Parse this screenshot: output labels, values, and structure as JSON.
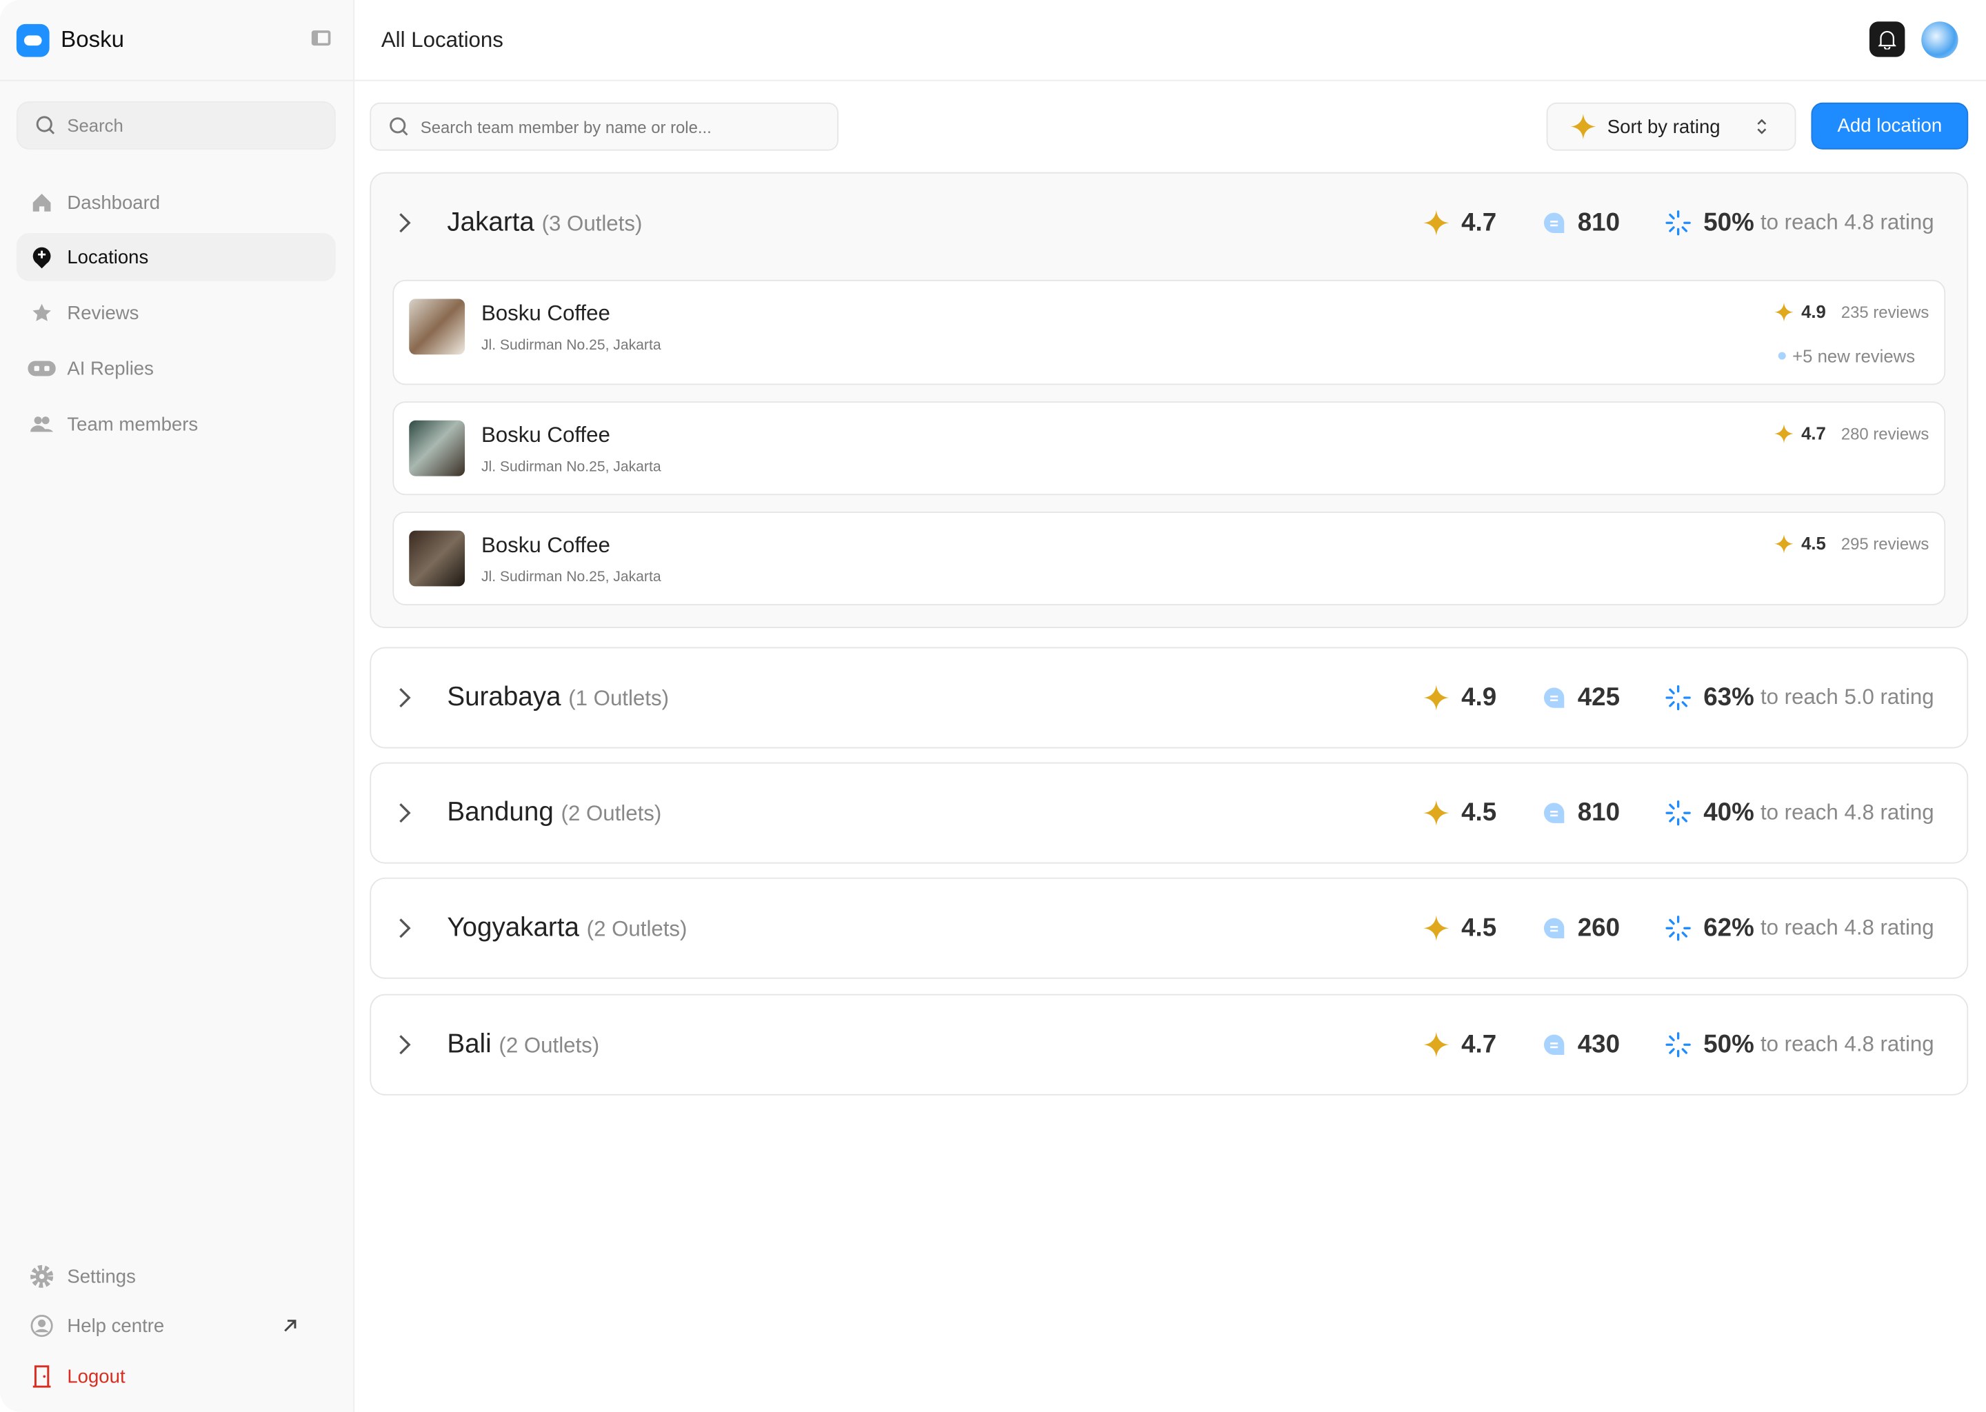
{
  "app": {
    "name": "Bosku"
  },
  "sidebar": {
    "search_placeholder": "Search",
    "items": [
      {
        "label": "Dashboard"
      },
      {
        "label": "Locations",
        "active": true
      },
      {
        "label": "Reviews"
      },
      {
        "label": "AI Replies"
      },
      {
        "label": "Team members"
      }
    ],
    "footer": [
      {
        "label": "Settings"
      },
      {
        "label": "Help centre"
      },
      {
        "label": "Logout"
      }
    ]
  },
  "header": {
    "title": "All Locations"
  },
  "toolbar": {
    "search_placeholder": "Search team member by name or role...",
    "sort_label": "Sort by rating",
    "add_label": "Add location"
  },
  "colors": {
    "accent": "#1e8bff",
    "star": "#e0a81c",
    "comment": "#a8d3ff",
    "logout": "#d92d20"
  },
  "groups": [
    {
      "city": "Jakarta",
      "count": "(3 Outlets)",
      "rating": "4.7",
      "reviews": "810",
      "progress": "50%",
      "goal": "to reach 4.8 rating",
      "expanded": true,
      "outlets": [
        {
          "name": "Bosku Coffee",
          "address": "Jl. Sudirman No.25, Jakarta",
          "rating": "4.9",
          "reviews": "235 reviews",
          "new": "+5 new reviews"
        },
        {
          "name": "Bosku Coffee",
          "address": "Jl. Sudirman No.25, Jakarta",
          "rating": "4.7",
          "reviews": "280 reviews"
        },
        {
          "name": "Bosku Coffee",
          "address": "Jl. Sudirman No.25, Jakarta",
          "rating": "4.5",
          "reviews": "295 reviews"
        }
      ]
    },
    {
      "city": "Surabaya",
      "count": "(1 Outlets)",
      "rating": "4.9",
      "reviews": "425",
      "progress": "63%",
      "goal": "to reach 5.0 rating"
    },
    {
      "city": "Bandung",
      "count": "(2 Outlets)",
      "rating": "4.5",
      "reviews": "810",
      "progress": "40%",
      "goal": "to reach 4.8 rating"
    },
    {
      "city": "Yogyakarta",
      "count": "(2 Outlets)",
      "rating": "4.5",
      "reviews": "260",
      "progress": "62%",
      "goal": "to reach 4.8 rating"
    },
    {
      "city": "Bali",
      "count": "(2 Outlets)",
      "rating": "4.7",
      "reviews": "430",
      "progress": "50%",
      "goal": "to reach 4.8 rating"
    }
  ]
}
